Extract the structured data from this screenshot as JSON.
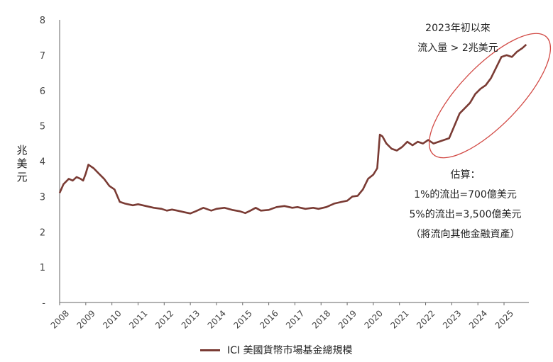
{
  "colors": {
    "series": "#7a3b34",
    "highlight": "#d24a45",
    "axis": "#666666"
  },
  "chart_data": {
    "type": "line",
    "ylabel": "兆美元",
    "ylim": [
      0,
      8
    ],
    "yticks": [
      {
        "value": 0,
        "label": "-"
      },
      {
        "value": 1,
        "label": "1"
      },
      {
        "value": 2,
        "label": "2"
      },
      {
        "value": 3,
        "label": "3"
      },
      {
        "value": 4,
        "label": "4"
      },
      {
        "value": 5,
        "label": "5"
      },
      {
        "value": 6,
        "label": "6"
      },
      {
        "value": 7,
        "label": "7"
      },
      {
        "value": 8,
        "label": "8"
      }
    ],
    "xlim": [
      2008,
      2025.95
    ],
    "xticks": [
      "2008",
      "2009",
      "2010",
      "2011",
      "2012",
      "2013",
      "2014",
      "2015",
      "2016",
      "2017",
      "2018",
      "2019",
      "2020",
      "2021",
      "2022",
      "2023",
      "2024",
      "2025"
    ],
    "grid": false,
    "legend_position": "bottom",
    "series": [
      {
        "name": "ICI 美國貨幣市場基金總規模",
        "x": [
          2008.0,
          2008.15,
          2008.35,
          2008.5,
          2008.65,
          2008.8,
          2008.9,
          2009.0,
          2009.1,
          2009.3,
          2009.5,
          2009.7,
          2009.9,
          2010.1,
          2010.3,
          2010.5,
          2010.8,
          2011.0,
          2011.3,
          2011.6,
          2011.9,
          2012.1,
          2012.3,
          2012.5,
          2012.8,
          2013.0,
          2013.2,
          2013.5,
          2013.8,
          2014.0,
          2014.3,
          2014.6,
          2014.9,
          2015.1,
          2015.3,
          2015.5,
          2015.7,
          2016.0,
          2016.3,
          2016.6,
          2016.9,
          2017.1,
          2017.4,
          2017.7,
          2017.9,
          2018.2,
          2018.5,
          2018.8,
          2019.0,
          2019.2,
          2019.4,
          2019.6,
          2019.8,
          2020.0,
          2020.15,
          2020.25,
          2020.35,
          2020.5,
          2020.7,
          2020.9,
          2021.1,
          2021.3,
          2021.5,
          2021.7,
          2021.9,
          2022.1,
          2022.3,
          2022.5,
          2022.7,
          2022.9,
          2023.1,
          2023.3,
          2023.5,
          2023.7,
          2023.9,
          2024.1,
          2024.3,
          2024.5,
          2024.7,
          2024.9,
          2025.1,
          2025.3,
          2025.5,
          2025.7,
          2025.85
        ],
        "values": [
          3.1,
          3.35,
          3.5,
          3.45,
          3.55,
          3.5,
          3.45,
          3.65,
          3.9,
          3.8,
          3.65,
          3.5,
          3.3,
          3.2,
          2.85,
          2.8,
          2.75,
          2.78,
          2.73,
          2.68,
          2.65,
          2.6,
          2.63,
          2.6,
          2.55,
          2.52,
          2.58,
          2.68,
          2.6,
          2.65,
          2.68,
          2.62,
          2.58,
          2.53,
          2.6,
          2.68,
          2.6,
          2.62,
          2.7,
          2.73,
          2.68,
          2.7,
          2.65,
          2.68,
          2.65,
          2.7,
          2.8,
          2.85,
          2.88,
          3.0,
          3.02,
          3.2,
          3.5,
          3.62,
          3.8,
          4.75,
          4.7,
          4.5,
          4.35,
          4.3,
          4.4,
          4.55,
          4.45,
          4.55,
          4.5,
          4.6,
          4.5,
          4.55,
          4.6,
          4.65,
          5.0,
          5.35,
          5.5,
          5.65,
          5.9,
          6.05,
          6.15,
          6.35,
          6.65,
          6.95,
          7.0,
          6.95,
          7.1,
          7.2,
          7.3
        ]
      }
    ],
    "annotations": [
      {
        "lines": [
          "2023年初以來",
          "流入量 > 2兆美元"
        ]
      },
      {
        "lines": [
          "估算：",
          "1%的流出=700億美元",
          "5%的流出=3,500億美元",
          "（將流向其他金融資產）"
        ]
      }
    ]
  }
}
